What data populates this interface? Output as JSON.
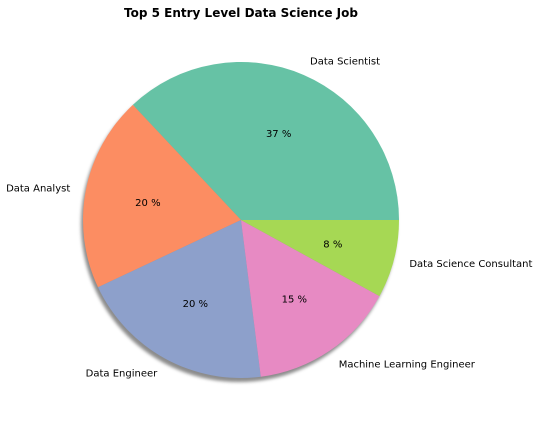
{
  "chart_data": {
    "type": "pie",
    "title": "Top 5 Entry Level Data Science Job",
    "categories": [
      "Data Scientist",
      "Data Analyst",
      "Data Engineer",
      "Machine Learning Engineer",
      "Data Science Consultant"
    ],
    "values": [
      37,
      20,
      20,
      15,
      8
    ],
    "value_labels": [
      "37 %",
      "20 %",
      "20 %",
      "15 %",
      "8 %"
    ],
    "colors": [
      "#66c2a5",
      "#fc8d62",
      "#8da0cb",
      "#e78ac3",
      "#a6d854"
    ],
    "start_angle_deg": 0,
    "direction": "counterclockwise",
    "shadow": true
  }
}
